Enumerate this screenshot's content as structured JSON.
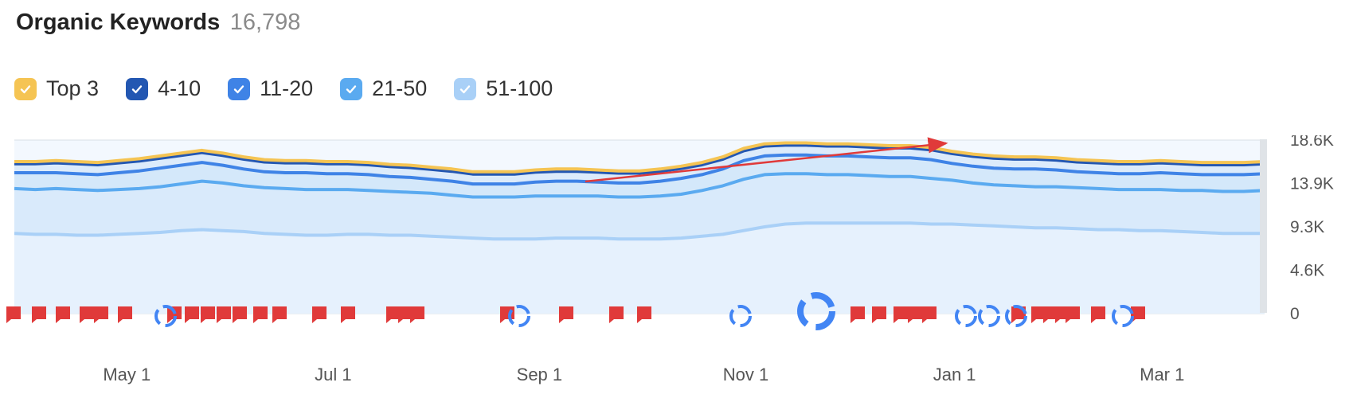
{
  "header": {
    "title": "Organic Keywords",
    "total": "16,798"
  },
  "legend": [
    {
      "label": "Top 3",
      "color": "#f5c453",
      "checked": true
    },
    {
      "label": "4-10",
      "color": "#2357b2",
      "checked": true
    },
    {
      "label": "11-20",
      "color": "#3f83e6",
      "checked": true
    },
    {
      "label": "21-50",
      "color": "#5aaaf0",
      "checked": true
    },
    {
      "label": "51-100",
      "color": "#a9d0f7",
      "checked": true
    }
  ],
  "chart_data": {
    "type": "area",
    "stacked": true,
    "x_ticks": [
      "May 1",
      "Jul 1",
      "Sep 1",
      "Nov 1",
      "Jan 1",
      "Mar 1"
    ],
    "y_ticks": [
      "0",
      "4.6K",
      "9.3K",
      "13.9K",
      "18.6K"
    ],
    "ylim": [
      0,
      18600
    ],
    "grid": true,
    "x": [
      0,
      1,
      2,
      3,
      4,
      5,
      6,
      7,
      8,
      9,
      10,
      11,
      12,
      13,
      14,
      15,
      16,
      17,
      18,
      19,
      20,
      21,
      22,
      23,
      24,
      25,
      26,
      27,
      28,
      29,
      30,
      31,
      32,
      33,
      34,
      35,
      36,
      37,
      38,
      39,
      40,
      41,
      42,
      43,
      44,
      45,
      46,
      47,
      48,
      49,
      50,
      51,
      52,
      53,
      54,
      55,
      56,
      57,
      58,
      59,
      60
    ],
    "series": [
      {
        "name": "51-100",
        "color": "#a9d0f7",
        "values": [
          8600,
          8500,
          8500,
          8400,
          8400,
          8500,
          8600,
          8700,
          8900,
          9000,
          8900,
          8800,
          8600,
          8500,
          8400,
          8400,
          8500,
          8500,
          8400,
          8400,
          8300,
          8200,
          8100,
          8000,
          8000,
          8000,
          8100,
          8100,
          8100,
          8000,
          8000,
          8000,
          8100,
          8300,
          8500,
          8900,
          9300,
          9600,
          9700,
          9700,
          9700,
          9700,
          9700,
          9700,
          9600,
          9600,
          9500,
          9400,
          9300,
          9200,
          9200,
          9100,
          9000,
          9000,
          8900,
          8900,
          8800,
          8700,
          8600,
          8600,
          8600
        ]
      },
      {
        "name": "21-50",
        "color": "#5aaaf0",
        "values": [
          13400,
          13300,
          13400,
          13300,
          13200,
          13300,
          13400,
          13600,
          13900,
          14200,
          14000,
          13700,
          13500,
          13400,
          13300,
          13300,
          13300,
          13200,
          13100,
          13000,
          12900,
          12700,
          12500,
          12500,
          12500,
          12600,
          12600,
          12600,
          12600,
          12500,
          12500,
          12600,
          12800,
          13200,
          13700,
          14400,
          14900,
          15000,
          15000,
          14900,
          14900,
          14800,
          14700,
          14700,
          14500,
          14300,
          14000,
          13800,
          13700,
          13600,
          13600,
          13500,
          13400,
          13300,
          13300,
          13300,
          13200,
          13200,
          13100,
          13100,
          13200
        ]
      },
      {
        "name": "11-20",
        "color": "#3f83e6",
        "values": [
          15100,
          15100,
          15100,
          15000,
          14900,
          15100,
          15300,
          15600,
          15900,
          16200,
          15900,
          15500,
          15200,
          15100,
          15100,
          15000,
          15000,
          14900,
          14700,
          14600,
          14400,
          14200,
          13900,
          13900,
          13900,
          14100,
          14200,
          14200,
          14100,
          14000,
          14000,
          14200,
          14500,
          14900,
          15500,
          16400,
          16900,
          17000,
          17000,
          16900,
          16900,
          16800,
          16700,
          16700,
          16500,
          16100,
          15800,
          15600,
          15500,
          15500,
          15400,
          15200,
          15100,
          15000,
          15000,
          15100,
          15000,
          14900,
          14900,
          14900,
          15000
        ]
      },
      {
        "name": "4-10",
        "color": "#2357b2",
        "values": [
          16100,
          16100,
          16200,
          16100,
          16000,
          16200,
          16400,
          16700,
          17000,
          17300,
          17000,
          16600,
          16300,
          16200,
          16200,
          16100,
          16100,
          16000,
          15800,
          15700,
          15500,
          15300,
          15000,
          15000,
          15000,
          15200,
          15300,
          15300,
          15200,
          15100,
          15100,
          15300,
          15600,
          16000,
          16600,
          17500,
          18000,
          18100,
          18100,
          18000,
          18000,
          17900,
          17800,
          17800,
          17600,
          17200,
          16900,
          16700,
          16600,
          16600,
          16500,
          16300,
          16200,
          16100,
          16100,
          16200,
          16100,
          16000,
          16000,
          16000,
          16100
        ]
      },
      {
        "name": "Top 3",
        "color": "#f5c453",
        "values": [
          16300,
          16300,
          16400,
          16300,
          16200,
          16400,
          16600,
          16900,
          17200,
          17500,
          17200,
          16800,
          16500,
          16400,
          16400,
          16300,
          16300,
          16200,
          16000,
          15900,
          15700,
          15500,
          15200,
          15200,
          15200,
          15400,
          15500,
          15500,
          15400,
          15300,
          15300,
          15500,
          15800,
          16200,
          16800,
          17700,
          18200,
          18300,
          18300,
          18200,
          18200,
          18100,
          18000,
          18000,
          17800,
          17400,
          17100,
          16900,
          16800,
          16800,
          16700,
          16500,
          16400,
          16300,
          16300,
          16400,
          16300,
          16200,
          16200,
          16200,
          16300
        ]
      }
    ]
  }
}
